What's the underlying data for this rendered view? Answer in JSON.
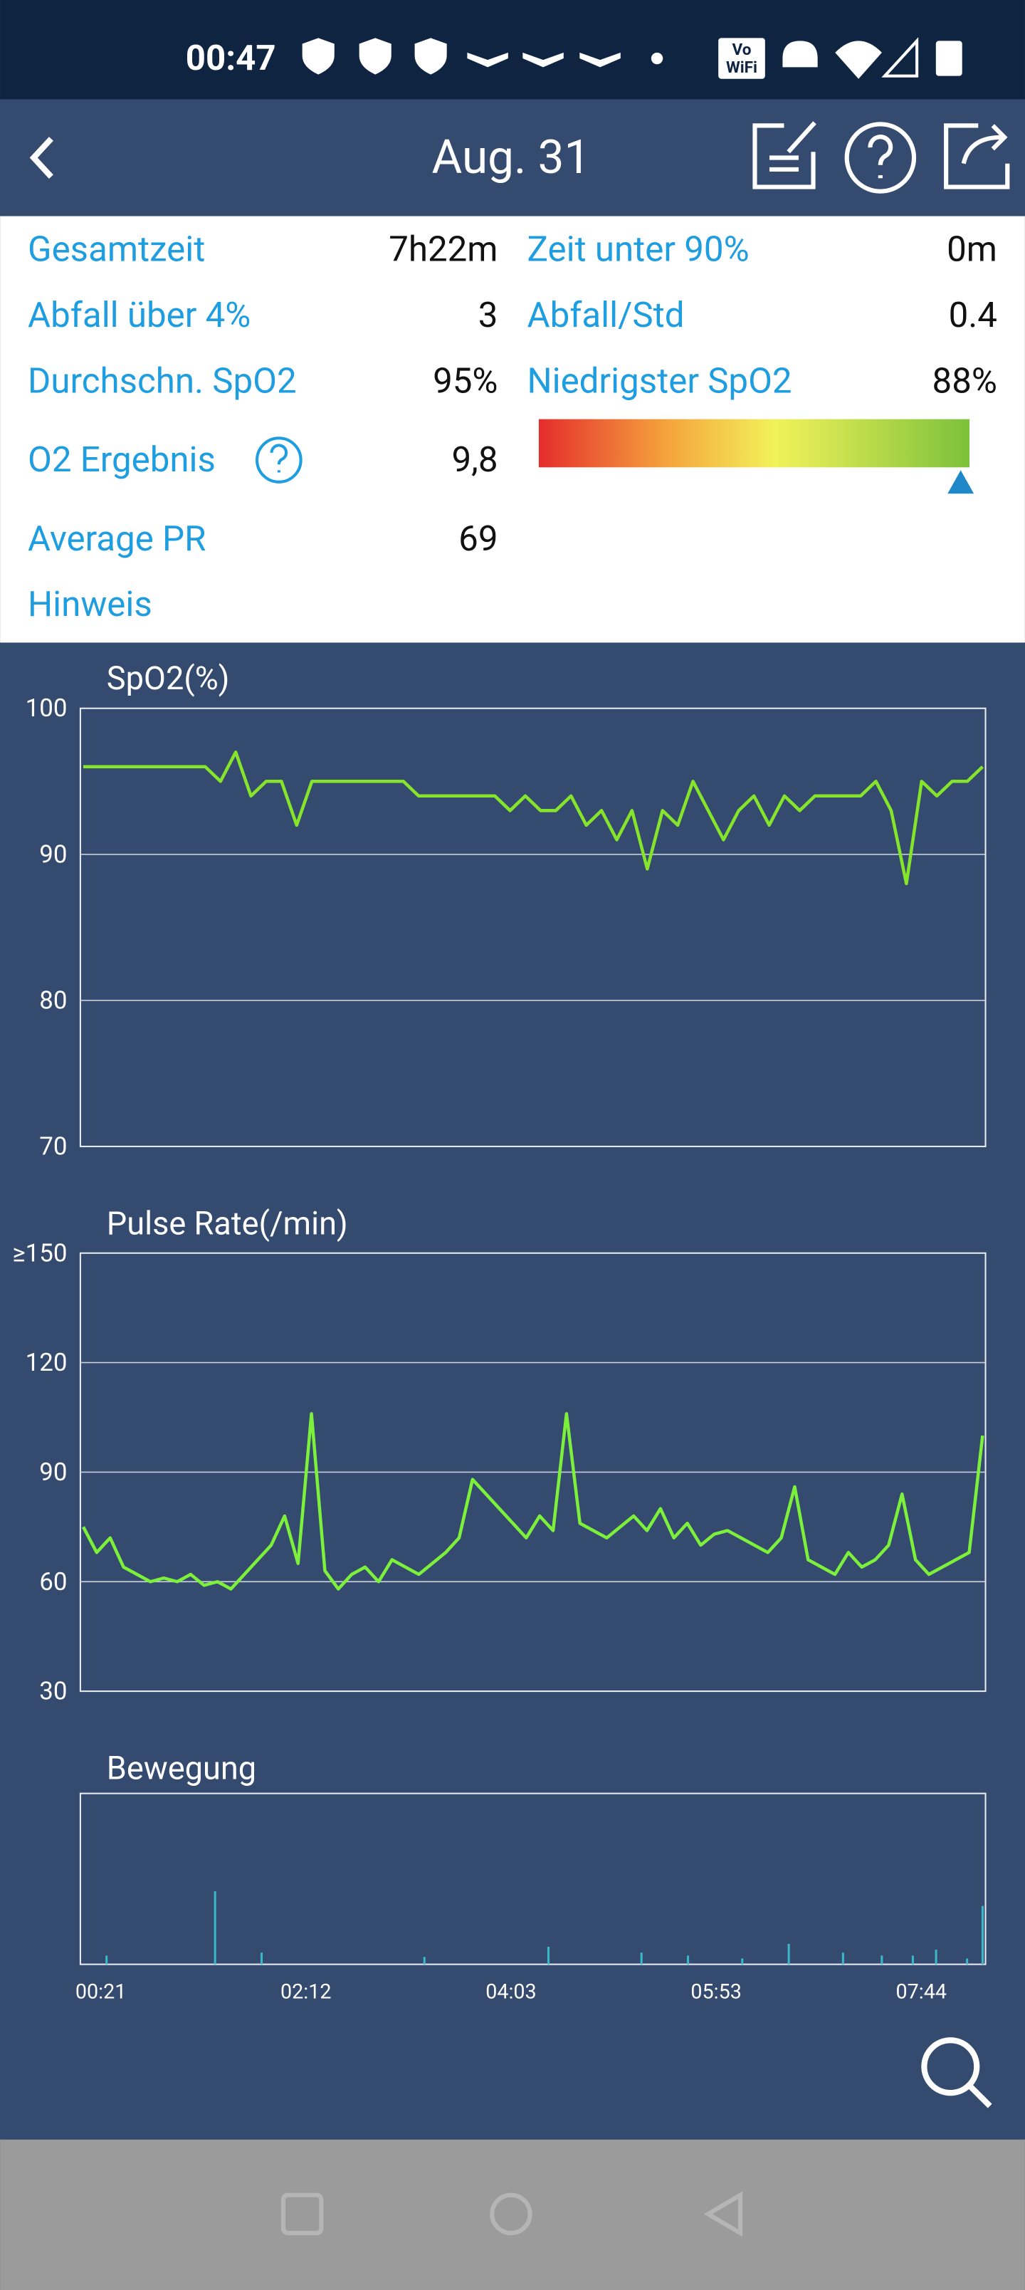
{
  "status_bar": {
    "time": "00:47",
    "badge": [
      "Vo",
      "WiFi"
    ]
  },
  "header": {
    "title": "Aug. 31"
  },
  "stats": {
    "left": [
      {
        "label": "Gesamtzeit",
        "value": "7h22m"
      },
      {
        "label": "Abfall über 4%",
        "value": "3"
      },
      {
        "label": "Durchschn. SpO2",
        "value": "95%"
      },
      {
        "label": "O2 Ergebnis",
        "value": "9,8"
      },
      {
        "label": "Average PR",
        "value": "69"
      }
    ],
    "right": [
      {
        "label": "Zeit unter 90%",
        "value": "0m"
      },
      {
        "label": "Abfall/Std",
        "value": "0.4"
      },
      {
        "label": "Niedrigster SpO2",
        "value": "88%"
      }
    ],
    "note": "Hinweis"
  },
  "chart_data": [
    {
      "type": "line",
      "title": "SpO2(%)",
      "ylim": [
        70,
        100
      ],
      "yticks": [
        70,
        80,
        90,
        100
      ],
      "grid": true,
      "color": "#86e52b",
      "values": [
        96,
        96,
        96,
        96,
        96,
        96,
        96,
        96,
        96,
        95,
        97,
        94,
        95,
        95,
        92,
        95,
        95,
        95,
        95,
        95,
        95,
        95,
        94,
        94,
        94,
        94,
        94,
        94,
        93,
        94,
        93,
        93,
        94,
        92,
        93,
        91,
        93,
        89,
        93,
        92,
        95,
        93,
        91,
        93,
        94,
        92,
        94,
        93,
        94,
        94,
        94,
        94,
        95,
        93,
        88,
        95,
        94,
        95,
        95,
        96
      ]
    },
    {
      "type": "line",
      "title": "Pulse Rate(/min)",
      "ylim": [
        30,
        150
      ],
      "yticks": [
        30,
        60,
        90,
        120,
        {
          "value": 150,
          "label": "≥150"
        }
      ],
      "grid": true,
      "color": "#7cf03a",
      "values": [
        75,
        68,
        72,
        64,
        62,
        60,
        61,
        60,
        62,
        59,
        60,
        58,
        62,
        66,
        70,
        78,
        65,
        106,
        63,
        58,
        62,
        64,
        60,
        66,
        64,
        62,
        65,
        68,
        72,
        88,
        84,
        80,
        76,
        72,
        78,
        74,
        106,
        76,
        74,
        72,
        75,
        78,
        74,
        80,
        72,
        76,
        70,
        73,
        74,
        72,
        70,
        68,
        72,
        86,
        66,
        64,
        62,
        68,
        64,
        66,
        70,
        84,
        66,
        62,
        64,
        66,
        68,
        100
      ]
    },
    {
      "type": "bar",
      "title": "Bewegung",
      "color": "#3bb8c8",
      "values": [
        0,
        0,
        0,
        6,
        0,
        0,
        0,
        0,
        0,
        0,
        0,
        0,
        0,
        0,
        0,
        0,
        0,
        50,
        0,
        0,
        0,
        0,
        0,
        8,
        0,
        0,
        0,
        0,
        0,
        0,
        0,
        0,
        0,
        0,
        0,
        0,
        0,
        0,
        0,
        0,
        0,
        0,
        0,
        0,
        5,
        0,
        0,
        0,
        0,
        0,
        0,
        0,
        0,
        0,
        0,
        0,
        0,
        0,
        0,
        0,
        12,
        0,
        0,
        0,
        0,
        0,
        0,
        0,
        0,
        0,
        0,
        0,
        8,
        0,
        0,
        0,
        0,
        0,
        6,
        0,
        0,
        0,
        0,
        0,
        0,
        4,
        0,
        0,
        0,
        0,
        0,
        14,
        0,
        0,
        0,
        0,
        0,
        0,
        8,
        0,
        0,
        0,
        0,
        6,
        0,
        0,
        0,
        6,
        0,
        0,
        10,
        0,
        0,
        0,
        4,
        0,
        40
      ]
    }
  ],
  "xticks": [
    "00:21",
    "02:12",
    "04:03",
    "05:53",
    "07:44"
  ]
}
